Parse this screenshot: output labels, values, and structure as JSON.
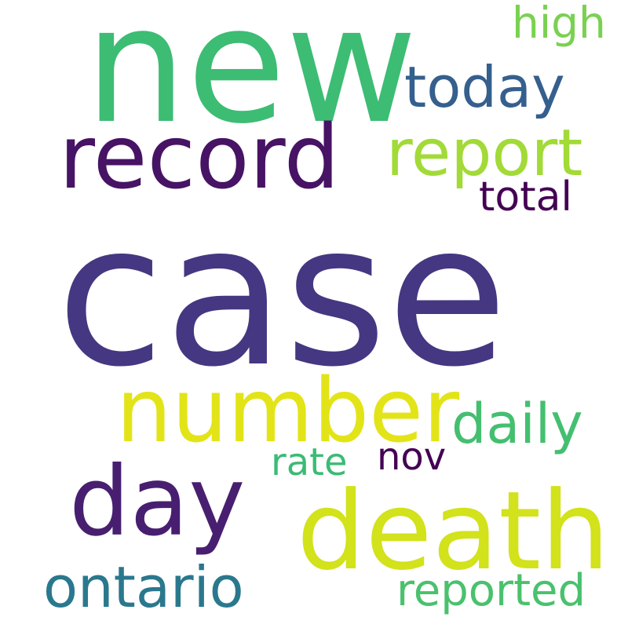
{
  "words": {
    "new": {
      "text": "new",
      "color": "#3dbc74"
    },
    "today": {
      "text": "today",
      "color": "#355f8d"
    },
    "high": {
      "text": "high",
      "color": "#7ad151"
    },
    "record": {
      "text": "record",
      "color": "#471365"
    },
    "report": {
      "text": "report",
      "color": "#a2da37"
    },
    "total": {
      "text": "total",
      "color": "#440154"
    },
    "case": {
      "text": "case",
      "color": "#453781"
    },
    "number": {
      "text": "number",
      "color": "#e2e418"
    },
    "daily": {
      "text": "daily",
      "color": "#44bf70"
    },
    "rate": {
      "text": "rate",
      "color": "#3bbb75"
    },
    "nov": {
      "text": "nov",
      "color": "#440154"
    },
    "day": {
      "text": "day",
      "color": "#481f70"
    },
    "death": {
      "text": "death",
      "color": "#d2e21b"
    },
    "ontario": {
      "text": "ontario",
      "color": "#2a788e"
    },
    "reported": {
      "text": "reported",
      "color": "#4ac16d"
    }
  },
  "background": "#ffffff"
}
